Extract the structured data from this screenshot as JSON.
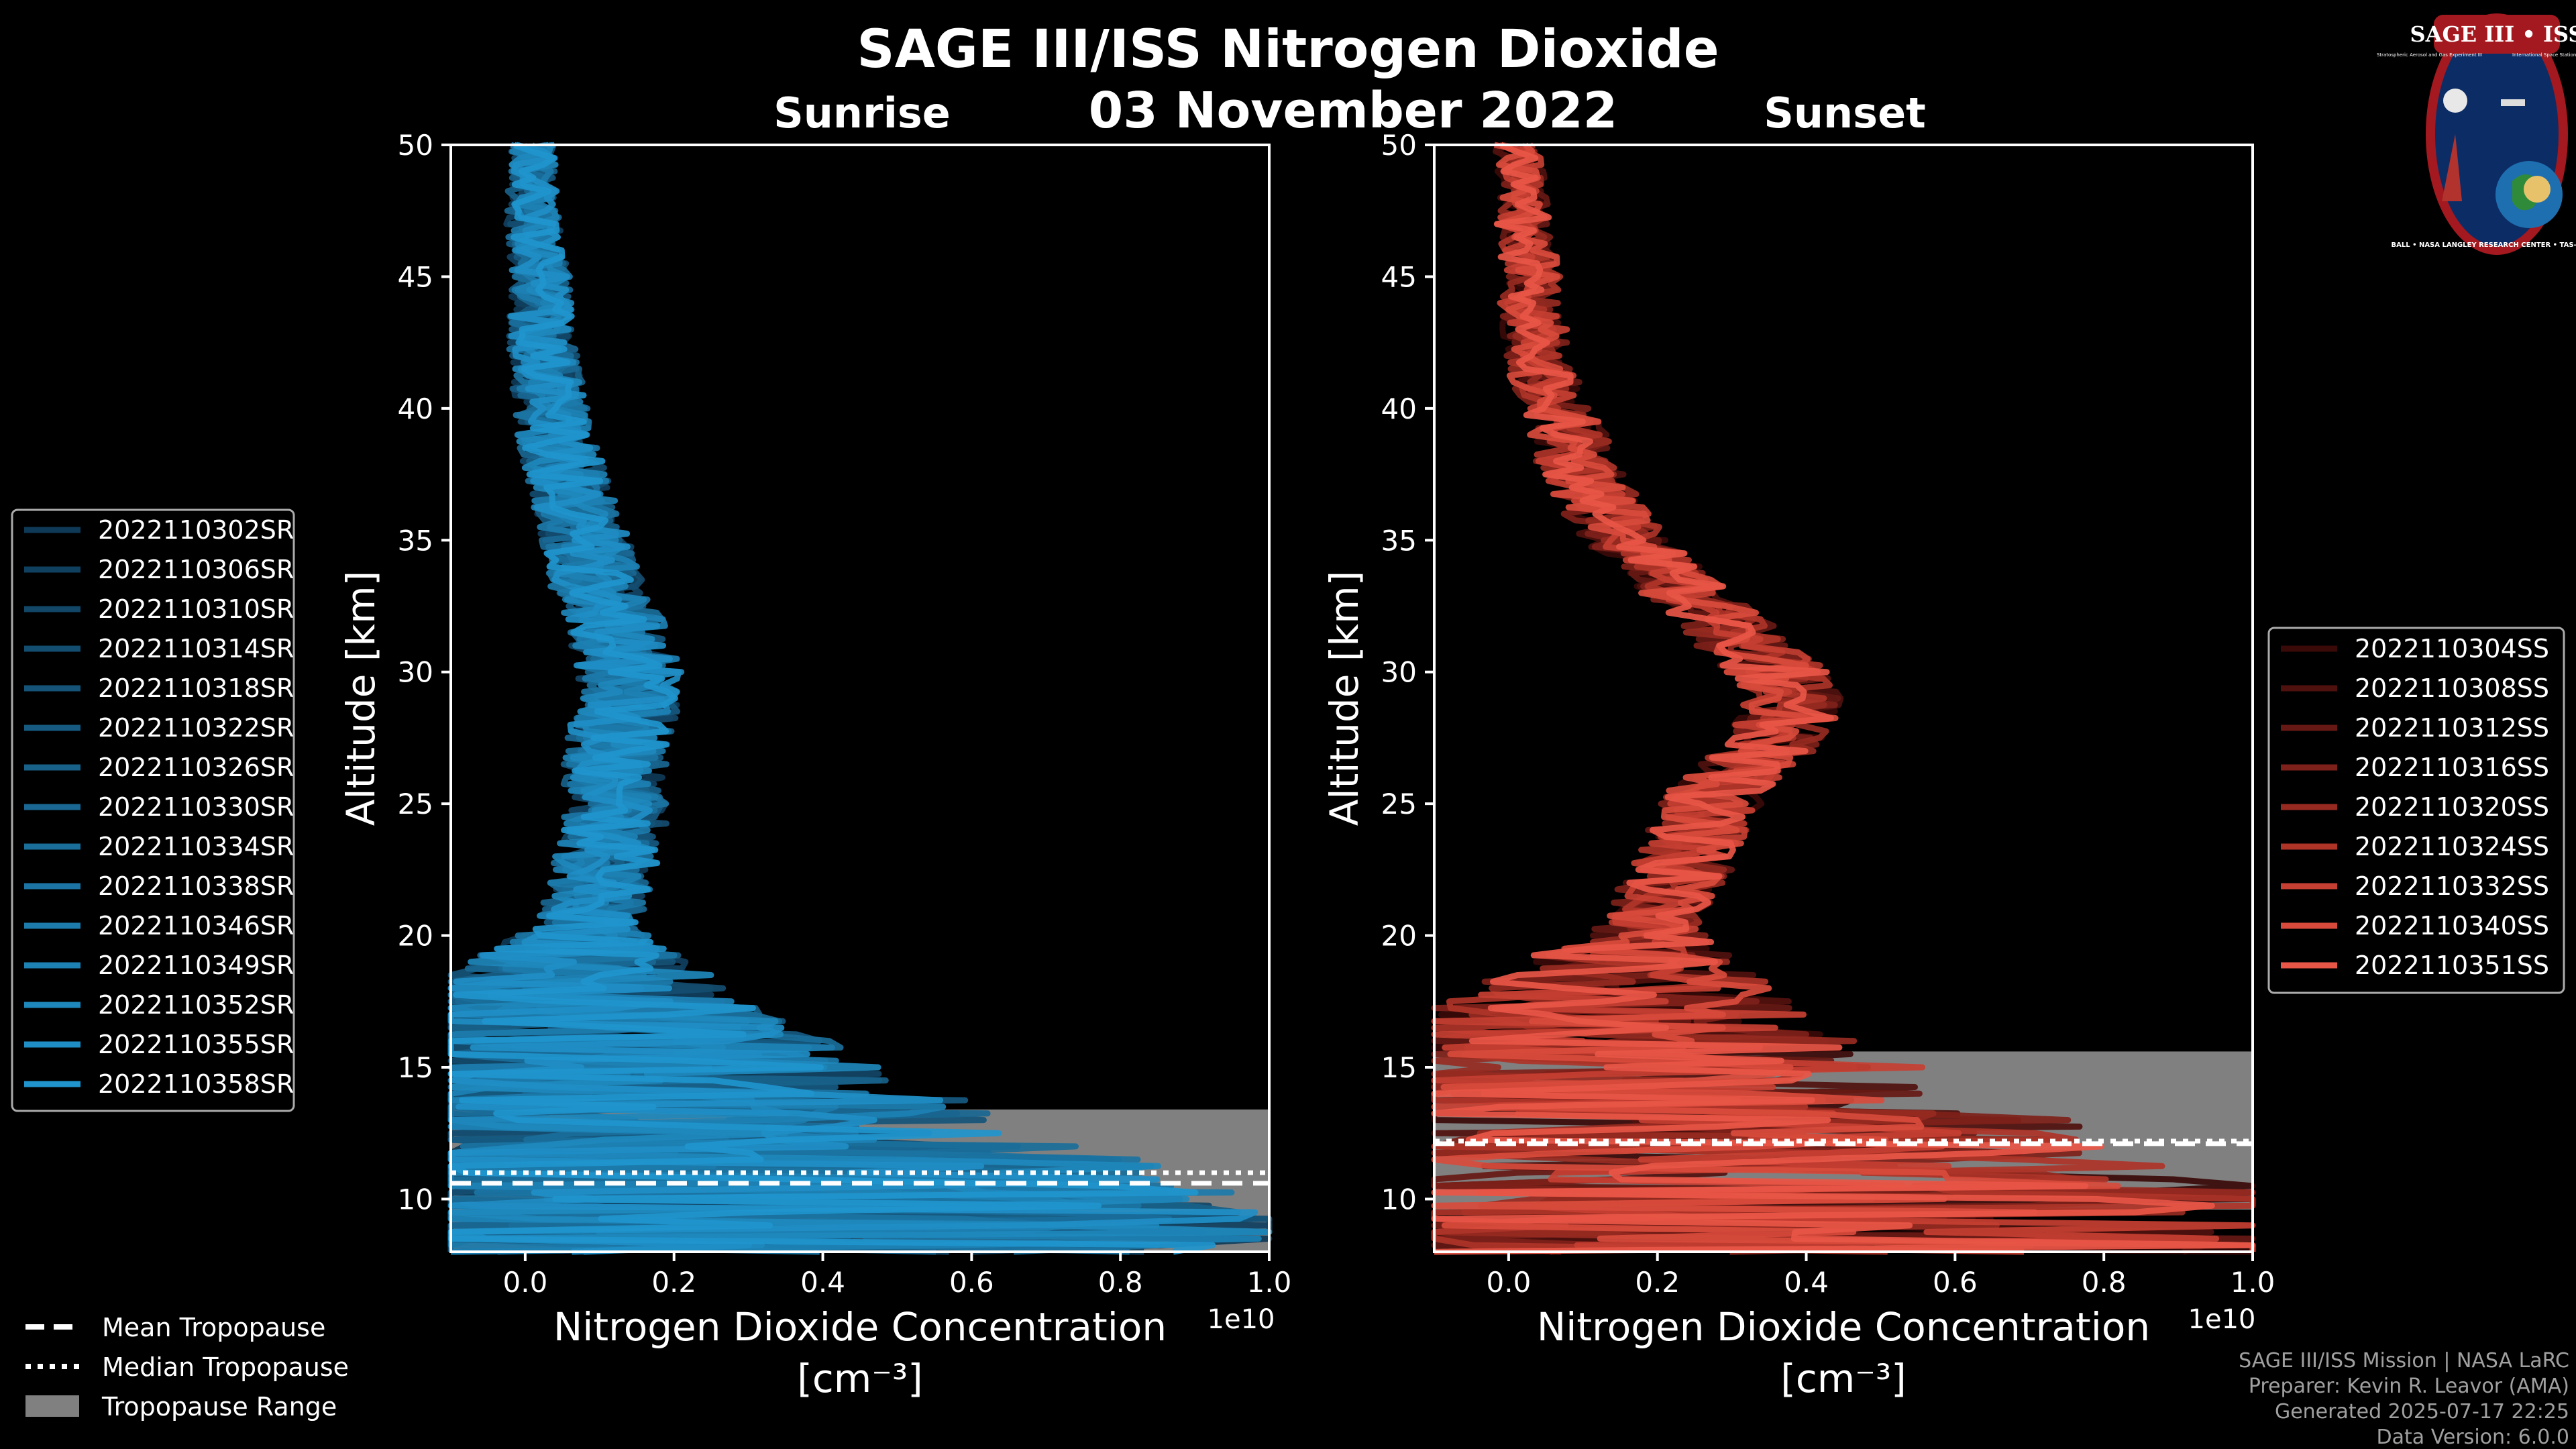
{
  "figure": {
    "title": "SAGE III/ISS Nitrogen Dioxide",
    "date": "03 November 2022"
  },
  "logo": {
    "name": "SAGE III • ISS",
    "subtitle_left": "Stratospheric Aerosol and Gas Experiment III",
    "subtitle_right": "International Space Station",
    "ring_text": "BALL • NASA LANGLEY RESEARCH CENTER • TAS-I • ESA"
  },
  "colors": {
    "background": "#000000",
    "sunrise": "#1f8fd6",
    "sunset": "#e8574a",
    "tropo_range": "#808080"
  },
  "chart_data": [
    {
      "type": "line",
      "title": "Sunrise",
      "xlabel": "Nitrogen Dioxide Concentration",
      "xunit": "[cm⁻³]",
      "ylabel": "Altitude [km]",
      "xlim": [
        -0.1,
        1.0
      ],
      "ylim": [
        8,
        50
      ],
      "x_scale_label": "1e10",
      "xticks": [
        0.0,
        0.2,
        0.4,
        0.6,
        0.8,
        1.0
      ],
      "xtick_labels": [
        "0.0",
        "0.2",
        "0.4",
        "0.6",
        "0.8",
        "1.0"
      ],
      "yticks": [
        10,
        15,
        20,
        25,
        30,
        35,
        40,
        45,
        50
      ],
      "ytick_labels": [
        "10",
        "15",
        "20",
        "25",
        "30",
        "35",
        "40",
        "45",
        "50"
      ],
      "legend_position": "left",
      "tropopause": {
        "range_km": [
          8,
          13.4
        ],
        "mean_km": 10.6,
        "median_km": 11.0
      },
      "profile_shape": {
        "altitudes_km": [
          8,
          9,
          10,
          11,
          12,
          13,
          14,
          15,
          16,
          17,
          18,
          19,
          20,
          21,
          22,
          23,
          24,
          25,
          26,
          27,
          28,
          29,
          30,
          31,
          32,
          33,
          34,
          35,
          36,
          37,
          38,
          39,
          40,
          41,
          42,
          43,
          44,
          45,
          46,
          47,
          48,
          49,
          50
        ],
        "mean_concentration_1e10": [
          0.3,
          0.3,
          0.3,
          0.25,
          0.2,
          0.15,
          0.12,
          0.1,
          0.08,
          0.07,
          0.07,
          0.07,
          0.08,
          0.09,
          0.1,
          0.11,
          0.12,
          0.12,
          0.12,
          0.12,
          0.13,
          0.14,
          0.14,
          0.13,
          0.12,
          0.1,
          0.09,
          0.08,
          0.07,
          0.06,
          0.05,
          0.04,
          0.035,
          0.03,
          0.025,
          0.02,
          0.02,
          0.02,
          0.015,
          0.01,
          0.01,
          0.01,
          0.01
        ]
      },
      "series": [
        {
          "name": "2022110302SR",
          "color": "#0e3a57"
        },
        {
          "name": "2022110306SR",
          "color": "#10405f"
        },
        {
          "name": "2022110310SR",
          "color": "#124767"
        },
        {
          "name": "2022110314SR",
          "color": "#134d70"
        },
        {
          "name": "2022110318SR",
          "color": "#155478"
        },
        {
          "name": "2022110322SR",
          "color": "#165a81"
        },
        {
          "name": "2022110326SR",
          "color": "#186189"
        },
        {
          "name": "2022110330SR",
          "color": "#196792"
        },
        {
          "name": "2022110334SR",
          "color": "#1a6e9a"
        },
        {
          "name": "2022110338SR",
          "color": "#1b74a3"
        },
        {
          "name": "2022110346SR",
          "color": "#1c7bab"
        },
        {
          "name": "2022110349SR",
          "color": "#1d81b4"
        },
        {
          "name": "2022110352SR",
          "color": "#1e88bc"
        },
        {
          "name": "2022110355SR",
          "color": "#1f8ec5"
        },
        {
          "name": "2022110358SR",
          "color": "#2095cd"
        }
      ]
    },
    {
      "type": "line",
      "title": "Sunset",
      "xlabel": "Nitrogen Dioxide Concentration",
      "xunit": "[cm⁻³]",
      "ylabel": "Altitude [km]",
      "xlim": [
        -0.1,
        1.0
      ],
      "ylim": [
        8,
        50
      ],
      "x_scale_label": "1e10",
      "xticks": [
        0.0,
        0.2,
        0.4,
        0.6,
        0.8,
        1.0
      ],
      "xtick_labels": [
        "0.0",
        "0.2",
        "0.4",
        "0.6",
        "0.8",
        "1.0"
      ],
      "yticks": [
        10,
        15,
        20,
        25,
        30,
        35,
        40,
        45,
        50
      ],
      "ytick_labels": [
        "10",
        "15",
        "20",
        "25",
        "30",
        "35",
        "40",
        "45",
        "50"
      ],
      "legend_position": "right",
      "tropopause": {
        "range_km": [
          9.6,
          15.6
        ],
        "mean_km": 12.1,
        "median_km": 12.2
      },
      "profile_shape": {
        "altitudes_km": [
          8,
          9,
          10,
          11,
          12,
          13,
          14,
          15,
          16,
          17,
          18,
          19,
          20,
          21,
          22,
          23,
          24,
          25,
          26,
          27,
          28,
          29,
          30,
          31,
          32,
          33,
          34,
          35,
          36,
          37,
          38,
          39,
          40,
          41,
          42,
          43,
          44,
          45,
          46,
          47,
          48,
          49,
          50
        ],
        "mean_concentration_1e10": [
          0.4,
          0.4,
          0.4,
          0.35,
          0.3,
          0.25,
          0.2,
          0.17,
          0.15,
          0.14,
          0.15,
          0.16,
          0.18,
          0.2,
          0.22,
          0.24,
          0.25,
          0.27,
          0.3,
          0.34,
          0.37,
          0.38,
          0.36,
          0.32,
          0.28,
          0.24,
          0.2,
          0.16,
          0.13,
          0.11,
          0.09,
          0.08,
          0.06,
          0.05,
          0.04,
          0.035,
          0.03,
          0.03,
          0.025,
          0.02,
          0.02,
          0.015,
          0.01
        ]
      },
      "series": [
        {
          "name": "2022110304SS",
          "color": "#3a0a08"
        },
        {
          "name": "2022110308SS",
          "color": "#4f110e"
        },
        {
          "name": "2022110312SS",
          "color": "#661914"
        },
        {
          "name": "2022110316SS",
          "color": "#7e211a"
        },
        {
          "name": "2022110320SS",
          "color": "#962a21"
        },
        {
          "name": "2022110324SS",
          "color": "#ae3428"
        },
        {
          "name": "2022110332SS",
          "color": "#c53f32"
        },
        {
          "name": "2022110340SS",
          "color": "#d84b3c"
        },
        {
          "name": "2022110351SS",
          "color": "#e85647"
        }
      ]
    }
  ],
  "tropopause_legend": {
    "mean": "Mean Tropopause",
    "median": "Median Tropopause",
    "range": "Tropopause Range"
  },
  "credits": {
    "line1": "SAGE III/ISS Mission | NASA LaRC",
    "line2": "Preparer: Kevin R. Leavor (AMA)",
    "line3": "Generated 2025-07-17 22:25",
    "line4": "Data Version: 6.0.0"
  }
}
